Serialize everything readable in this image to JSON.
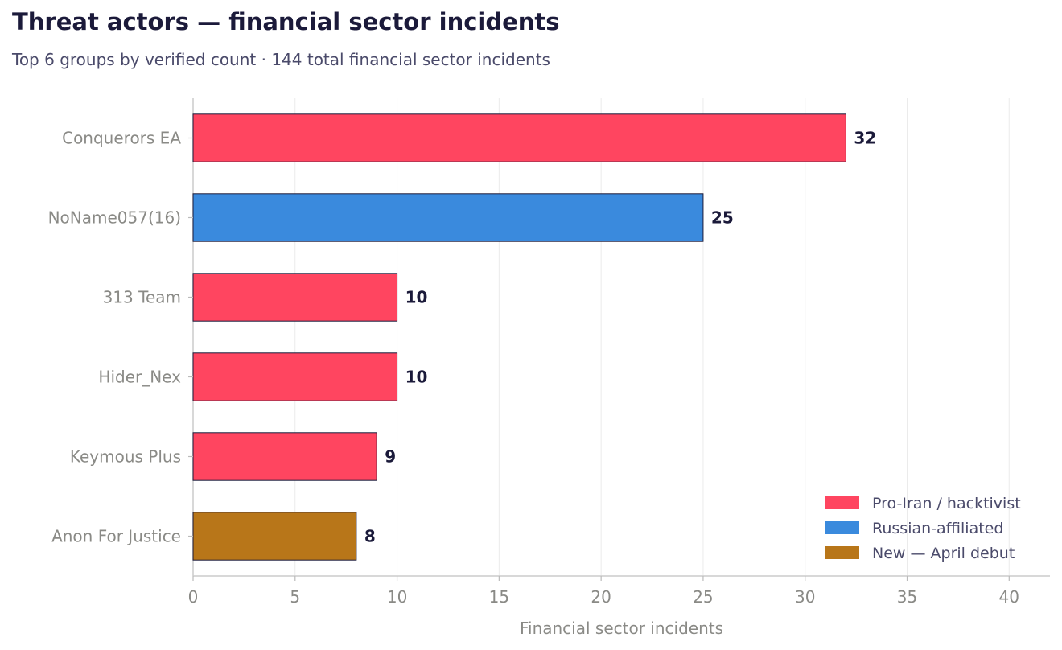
{
  "chart_data": {
    "type": "bar",
    "orientation": "horizontal",
    "title": "Threat actors — financial sector incidents",
    "subtitle": "Top 6 groups by verified count · 144 total financial sector incidents",
    "xlabel": "Financial sector incidents",
    "ylabel": "",
    "xlim": [
      0,
      42
    ],
    "xticks": [
      0,
      5,
      10,
      15,
      20,
      25,
      30,
      35,
      40
    ],
    "grid": "vertical",
    "legend_position": "bottom-right",
    "categories": [
      "Conquerors EA",
      "NoName057(16)",
      "313 Team",
      "Hider_Nex",
      "Keymous Plus",
      "Anon For Justice"
    ],
    "values": [
      32,
      25,
      10,
      10,
      9,
      8
    ],
    "bar_groups": [
      "Pro-Iran / hacktivist",
      "Russian-affiliated",
      "Pro-Iran / hacktivist",
      "Pro-Iran / hacktivist",
      "Pro-Iran / hacktivist",
      "New — April debut"
    ],
    "legend": [
      {
        "label": "Pro-Iran / hacktivist",
        "color": "#ff4560"
      },
      {
        "label": "Russian-affiliated",
        "color": "#3a8add"
      },
      {
        "label": "New — April debut",
        "color": "#b87619"
      }
    ]
  }
}
